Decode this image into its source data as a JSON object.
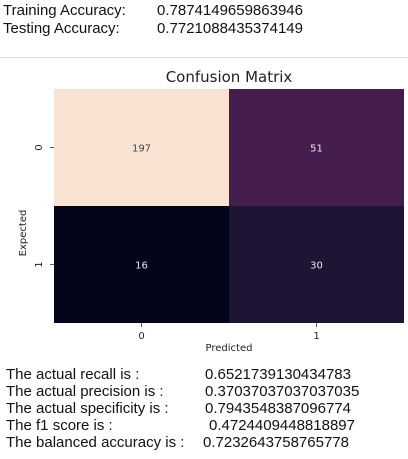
{
  "training": {
    "label": "Training Accuracy:",
    "value": "0.7874149659863946"
  },
  "testing": {
    "label": "Testing Accuracy:",
    "value": "0.7721088435374149"
  },
  "chart_data": {
    "type": "heatmap",
    "title": "Confusion Matrix",
    "xlabel": "Predicted",
    "ylabel": "Expected",
    "x_ticks": [
      "0",
      "1"
    ],
    "y_ticks": [
      "0",
      "1"
    ],
    "values": [
      [
        197,
        51
      ],
      [
        16,
        30
      ]
    ],
    "cell_colors": [
      [
        "#fbe3d4",
        "#441c4e"
      ],
      [
        "#03051a",
        "#1f1434"
      ]
    ],
    "text_color": "#e8e8e8"
  },
  "metrics": [
    {
      "label": "The actual recall is :",
      "value": "0.6521739130434783"
    },
    {
      "label": "The actual precision is :",
      "value": "0.37037037037037035"
    },
    {
      "label": "The actual specificity is :",
      "value": "0.7943548387096774"
    },
    {
      "label": "The f1 score is :",
      "value": "0.4724409448818897"
    },
    {
      "label": "The balanced accuracy is :",
      "value": "0.7232643758765778"
    }
  ]
}
